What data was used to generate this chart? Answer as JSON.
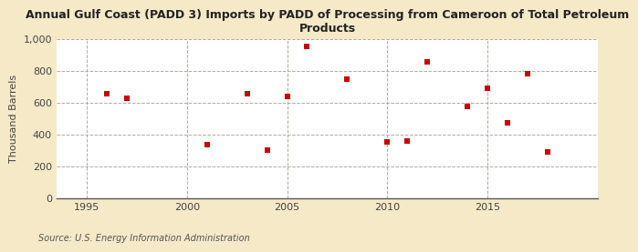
{
  "title": "Annual Gulf Coast (PADD 3) Imports by PADD of Processing from Cameroon of Total Petroleum\nProducts",
  "ylabel": "Thousand Barrels",
  "source": "Source: U.S. Energy Information Administration",
  "background_color": "#f5e9c8",
  "plot_background_color": "#ffffff",
  "marker_color": "#cc0000",
  "marker_size": 5,
  "marker_style": "s",
  "grid_color": "#b0a090",
  "ylim": [
    0,
    1000
  ],
  "yticks": [
    0,
    200,
    400,
    600,
    800,
    1000
  ],
  "xlim": [
    1993.5,
    2020.5
  ],
  "xticks": [
    1995,
    2000,
    2005,
    2010,
    2015
  ],
  "years": [
    1995,
    1996,
    1997,
    1998,
    1999,
    2000,
    2001,
    2002,
    2003,
    2004,
    2005,
    2006,
    2007,
    2008,
    2009,
    2010,
    2011,
    2012,
    2013,
    2014,
    2015,
    2016,
    2017,
    2018,
    2019
  ],
  "values": [
    null,
    660,
    630,
    null,
    null,
    null,
    335,
    null,
    660,
    300,
    640,
    955,
    null,
    750,
    null,
    355,
    360,
    855,
    null,
    580,
    690,
    475,
    785,
    290,
    null
  ]
}
